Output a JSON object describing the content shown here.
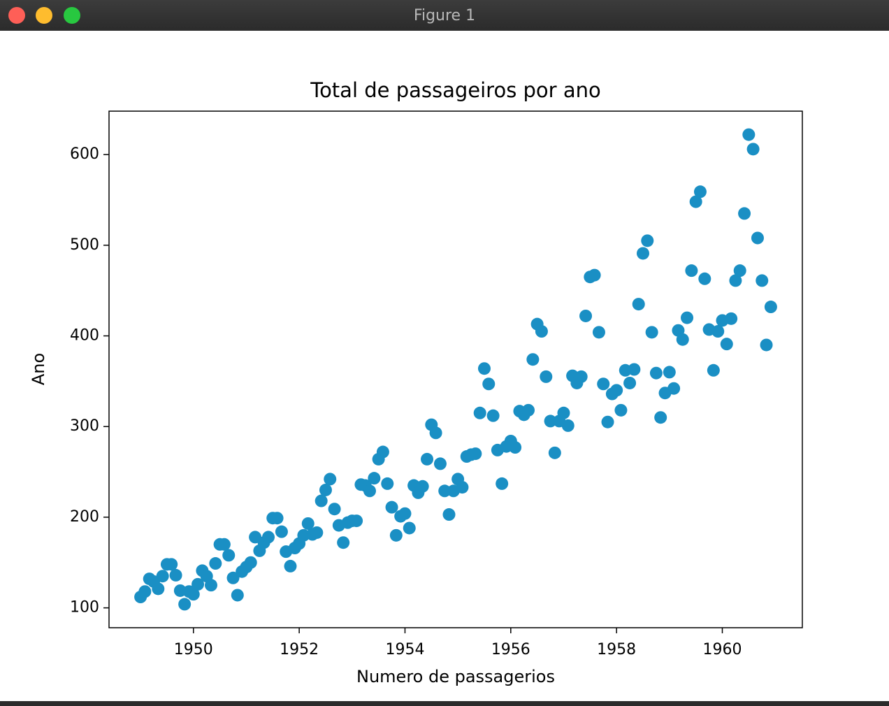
{
  "window_title": "Figure 1",
  "chart_data": {
    "type": "scatter",
    "title": "Total de passageiros por ano",
    "xlabel": "Numero de passagerios",
    "ylabel": "Ano",
    "color": "#1a8fc4",
    "x": [
      1949,
      1949.083,
      1949.167,
      1949.25,
      1949.333,
      1949.417,
      1949.5,
      1949.583,
      1949.667,
      1949.75,
      1949.833,
      1949.917,
      1950,
      1950.083,
      1950.167,
      1950.25,
      1950.333,
      1950.417,
      1950.5,
      1950.583,
      1950.667,
      1950.75,
      1950.833,
      1950.917,
      1951,
      1951.083,
      1951.167,
      1951.25,
      1951.333,
      1951.417,
      1951.5,
      1951.583,
      1951.667,
      1951.75,
      1951.833,
      1951.917,
      1952,
      1952.083,
      1952.167,
      1952.25,
      1952.333,
      1952.417,
      1952.5,
      1952.583,
      1952.667,
      1952.75,
      1952.833,
      1952.917,
      1953,
      1953.083,
      1953.167,
      1953.25,
      1953.333,
      1953.417,
      1953.5,
      1953.583,
      1953.667,
      1953.75,
      1953.833,
      1953.917,
      1954,
      1954.083,
      1954.167,
      1954.25,
      1954.333,
      1954.417,
      1954.5,
      1954.583,
      1954.667,
      1954.75,
      1954.833,
      1954.917,
      1955,
      1955.083,
      1955.167,
      1955.25,
      1955.333,
      1955.417,
      1955.5,
      1955.583,
      1955.667,
      1955.75,
      1955.833,
      1955.917,
      1956,
      1956.083,
      1956.167,
      1956.25,
      1956.333,
      1956.417,
      1956.5,
      1956.583,
      1956.667,
      1956.75,
      1956.833,
      1956.917,
      1957,
      1957.083,
      1957.167,
      1957.25,
      1957.333,
      1957.417,
      1957.5,
      1957.583,
      1957.667,
      1957.75,
      1957.833,
      1957.917,
      1958,
      1958.083,
      1958.167,
      1958.25,
      1958.333,
      1958.417,
      1958.5,
      1958.583,
      1958.667,
      1958.75,
      1958.833,
      1958.917,
      1959,
      1959.083,
      1959.167,
      1959.25,
      1959.333,
      1959.417,
      1959.5,
      1959.583,
      1959.667,
      1959.75,
      1959.833,
      1959.917,
      1960,
      1960.083,
      1960.167,
      1960.25,
      1960.333,
      1960.417,
      1960.5,
      1960.583,
      1960.667,
      1960.75,
      1960.833,
      1960.917
    ],
    "values": [
      112,
      118,
      132,
      129,
      121,
      135,
      148,
      148,
      136,
      119,
      104,
      118,
      115,
      126,
      141,
      135,
      125,
      149,
      170,
      170,
      158,
      133,
      114,
      140,
      145,
      150,
      178,
      163,
      172,
      178,
      199,
      199,
      184,
      162,
      146,
      166,
      171,
      180,
      193,
      181,
      183,
      218,
      230,
      242,
      209,
      191,
      172,
      194,
      196,
      196,
      236,
      235,
      229,
      243,
      264,
      272,
      237,
      211,
      180,
      201,
      204,
      188,
      235,
      227,
      234,
      264,
      302,
      293,
      259,
      229,
      203,
      229,
      242,
      233,
      267,
      269,
      270,
      315,
      364,
      347,
      312,
      274,
      237,
      278,
      284,
      277,
      317,
      313,
      318,
      374,
      413,
      405,
      355,
      306,
      271,
      306,
      315,
      301,
      356,
      348,
      355,
      422,
      465,
      467,
      404,
      347,
      305,
      336,
      340,
      318,
      362,
      348,
      363,
      435,
      491,
      505,
      404,
      359,
      310,
      337,
      360,
      342,
      406,
      396,
      420,
      472,
      548,
      559,
      463,
      407,
      362,
      405,
      417,
      391,
      419,
      461,
      472,
      535,
      622,
      606,
      508,
      461,
      390,
      432
    ],
    "xlim": [
      1948.404,
      1961.513
    ],
    "xticks": [
      1950,
      1952,
      1954,
      1956,
      1958,
      1960
    ],
    "ylim": [
      78.1,
      647.9
    ],
    "yticks": [
      100,
      200,
      300,
      400,
      500,
      600
    ]
  }
}
